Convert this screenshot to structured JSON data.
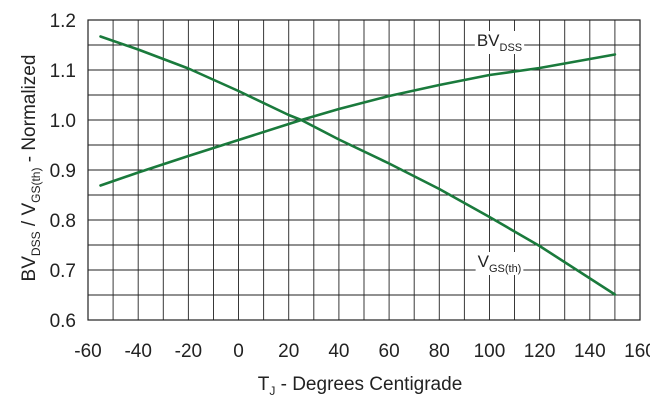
{
  "chart_data": {
    "type": "line",
    "title": "",
    "xlabel": {
      "main": "T",
      "sub": "J",
      "rest": " - Degrees Centigrade"
    },
    "ylabel": {
      "p1": "BV",
      "s1": "DSS",
      "p2": " / V",
      "s2": "GS(th)",
      "p3": " - Normalized"
    },
    "xlim": [
      -60,
      160
    ],
    "ylim": [
      0.6,
      1.2
    ],
    "x_ticks": [
      -60,
      -40,
      -20,
      0,
      20,
      40,
      60,
      80,
      100,
      120,
      140,
      160
    ],
    "x_tick_labels": [
      "-60",
      "-40",
      "-20",
      "0",
      "20",
      "40",
      "60",
      "80",
      "100",
      "120",
      "140",
      "160"
    ],
    "y_ticks": [
      0.6,
      0.7,
      0.8,
      0.9,
      1.0,
      1.1,
      1.2
    ],
    "y_tick_labels": [
      "0.6",
      "0.7",
      "0.8",
      "0.9",
      "1.0",
      "1.1",
      "1.2"
    ],
    "grid": true,
    "grid_x_step": 10,
    "grid_y_step": 0.05,
    "line_color": "#1a7a3c",
    "grid_color": "#222222",
    "series": [
      {
        "name": "BVDSS",
        "label": {
          "main": "BV",
          "sub": "DSS"
        },
        "label_at": {
          "x": 104,
          "y": 1.148
        },
        "x": [
          -55,
          -40,
          -20,
          0,
          20,
          25,
          40,
          60,
          80,
          100,
          120,
          150
        ],
        "y": [
          0.869,
          0.895,
          0.928,
          0.96,
          0.992,
          1.0,
          1.022,
          1.048,
          1.07,
          1.09,
          1.104,
          1.131
        ]
      },
      {
        "name": "VGS(th)",
        "label": {
          "main": "V",
          "sub": "GS(th)"
        },
        "label_at": {
          "x": 104,
          "y": 0.706
        },
        "x": [
          -55,
          -40,
          -20,
          0,
          20,
          25,
          40,
          60,
          80,
          100,
          120,
          150
        ],
        "y": [
          1.167,
          1.141,
          1.103,
          1.058,
          1.01,
          1.0,
          0.961,
          0.913,
          0.862,
          0.806,
          0.748,
          0.651
        ]
      }
    ]
  }
}
